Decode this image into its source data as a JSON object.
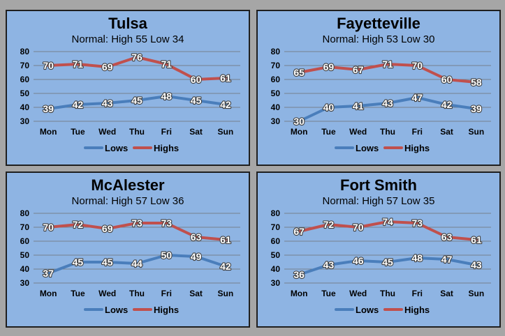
{
  "colors": {
    "page_background": "#a6a6a6",
    "panel_background": "#8eb4e3",
    "lows": "#4a7ebb",
    "highs": "#c0504d",
    "grid": "#6f6f6f"
  },
  "chart_data": [
    {
      "type": "line",
      "title": "Tulsa",
      "subtitle": "Normal: High 55 Low 34",
      "categories": [
        "Mon",
        "Tue",
        "Wed",
        "Thu",
        "Fri",
        "Sat",
        "Sun"
      ],
      "series": [
        {
          "name": "Lows",
          "values": [
            39,
            42,
            43,
            45,
            48,
            45,
            42
          ]
        },
        {
          "name": "Highs",
          "values": [
            70,
            71,
            69,
            76,
            71,
            60,
            61
          ]
        }
      ],
      "yticks": [
        30,
        40,
        50,
        60,
        70,
        80
      ],
      "ylim": [
        30,
        80
      ],
      "grid": true,
      "legend": "bottom"
    },
    {
      "type": "line",
      "title": "Fayetteville",
      "subtitle": "Normal: High 53 Low 30",
      "categories": [
        "Mon",
        "Tue",
        "Wed",
        "Thu",
        "Fri",
        "Sat",
        "Sun"
      ],
      "series": [
        {
          "name": "Lows",
          "values": [
            30,
            40,
            41,
            43,
            47,
            42,
            39
          ]
        },
        {
          "name": "Highs",
          "values": [
            65,
            69,
            67,
            71,
            70,
            60,
            58
          ]
        }
      ],
      "yticks": [
        30,
        40,
        50,
        60,
        70,
        80
      ],
      "ylim": [
        30,
        80
      ],
      "grid": true,
      "legend": "bottom"
    },
    {
      "type": "line",
      "title": "McAlester",
      "subtitle": "Normal: High 57 Low 36",
      "categories": [
        "Mon",
        "Tue",
        "Wed",
        "Thu",
        "Fri",
        "Sat",
        "Sun"
      ],
      "series": [
        {
          "name": "Lows",
          "values": [
            37,
            45,
            45,
            44,
            50,
            49,
            42
          ]
        },
        {
          "name": "Highs",
          "values": [
            70,
            72,
            69,
            73,
            73,
            63,
            61
          ]
        }
      ],
      "yticks": [
        30,
        40,
        50,
        60,
        70,
        80
      ],
      "ylim": [
        30,
        80
      ],
      "grid": true,
      "legend": "bottom"
    },
    {
      "type": "line",
      "title": "Fort Smith",
      "subtitle": "Normal: High 57 Low 35",
      "categories": [
        "Mon",
        "Tue",
        "Wed",
        "Thu",
        "Fri",
        "Sat",
        "Sun"
      ],
      "series": [
        {
          "name": "Lows",
          "values": [
            36,
            43,
            46,
            45,
            48,
            47,
            43
          ]
        },
        {
          "name": "Highs",
          "values": [
            67,
            72,
            70,
            74,
            73,
            63,
            61
          ]
        }
      ],
      "yticks": [
        30,
        40,
        50,
        60,
        70,
        80
      ],
      "ylim": [
        30,
        80
      ],
      "grid": true,
      "legend": "bottom"
    }
  ]
}
